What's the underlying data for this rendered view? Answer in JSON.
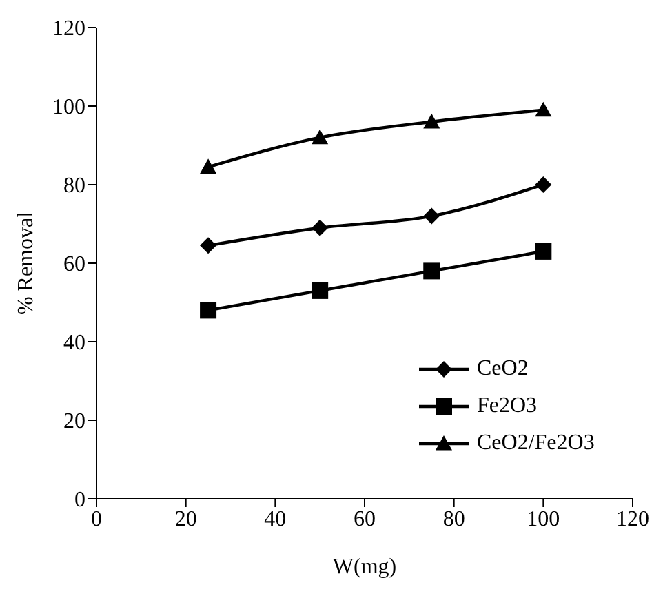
{
  "chart_data": {
    "type": "line",
    "xlabel": "W(mg)",
    "ylabel": "% Removal",
    "x": [
      25,
      50,
      75,
      100
    ],
    "series": [
      {
        "name": "CeO2",
        "color": "#000000",
        "marker": "diamond",
        "values": [
          64.5,
          69,
          72,
          80
        ]
      },
      {
        "name": "Fe2O3",
        "color": "#000000",
        "marker": "square",
        "values": [
          48,
          53,
          58,
          63
        ]
      },
      {
        "name": "CeO2/Fe2O3",
        "color": "#000000",
        "marker": "triangle",
        "values": [
          84.5,
          92,
          96,
          99
        ]
      }
    ],
    "xlim": [
      0,
      120
    ],
    "xticks": [
      0,
      20,
      40,
      60,
      80,
      100,
      120
    ],
    "ylim": [
      0,
      120
    ],
    "yticks": [
      0,
      20,
      40,
      60,
      80,
      100,
      120
    ],
    "grid": false,
    "legend": "bottom right",
    "line_style": "solid"
  }
}
